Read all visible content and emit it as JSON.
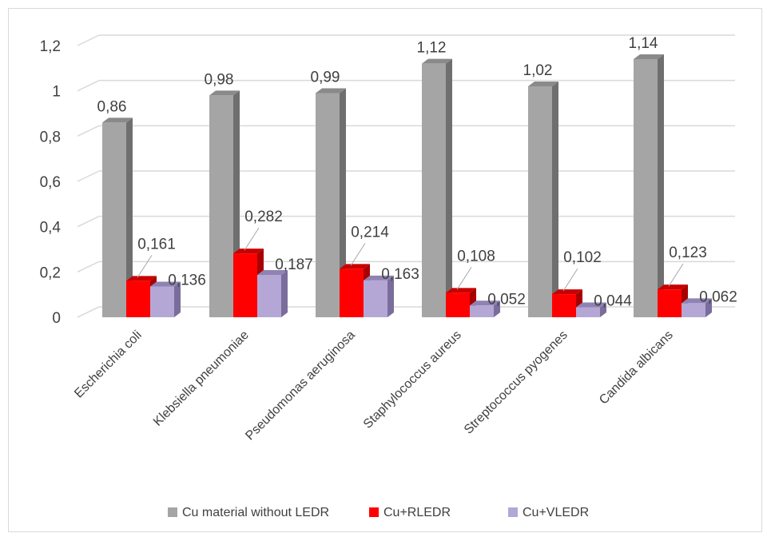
{
  "chart_data": {
    "type": "bar",
    "title": "",
    "xlabel": "",
    "ylabel": "",
    "ylim": [
      0,
      1.2
    ],
    "yticks": [
      "0",
      "0,2",
      "0,4",
      "0,6",
      "0,8",
      "1",
      "1,2"
    ],
    "ytick_values": [
      0,
      0.2,
      0.4,
      0.6,
      0.8,
      1.0,
      1.2
    ],
    "grid": true,
    "legend_position": "bottom",
    "categories": [
      "Escherichia coli",
      "Klebsiella pneumoniae",
      "Pseudomonas  aeruginosa",
      "Staphylococcus aureus",
      "Streptococcus pyogenes",
      "Candida albicans"
    ],
    "series": [
      {
        "name": "Cu material without LEDR",
        "values": [
          0.86,
          0.98,
          0.99,
          1.12,
          1.02,
          1.14
        ],
        "labels": [
          "0,86",
          "0,98",
          "0,99",
          "1,12",
          "1,02",
          "1,14"
        ],
        "color": "#a5a5a5",
        "side_color": "#6f6f6f",
        "top_color": "#8a8a8a"
      },
      {
        "name": "Cu+RLEDR",
        "values": [
          0.161,
          0.282,
          0.214,
          0.108,
          0.102,
          0.123
        ],
        "labels": [
          "0,161",
          "0,282",
          "0,214",
          "0,108",
          "0,102",
          "0,123"
        ],
        "color": "#ff0000",
        "side_color": "#a80000",
        "top_color": "#c80000"
      },
      {
        "name": "Cu+VLEDR",
        "values": [
          0.136,
          0.187,
          0.163,
          0.052,
          0.044,
          0.062
        ],
        "labels": [
          "0,136",
          "0,187",
          "0,163",
          "0,052",
          "0,044",
          "0,062"
        ],
        "color": "#b4a7d6",
        "side_color": "#7a6d9c",
        "top_color": "#8f82b3"
      }
    ]
  }
}
